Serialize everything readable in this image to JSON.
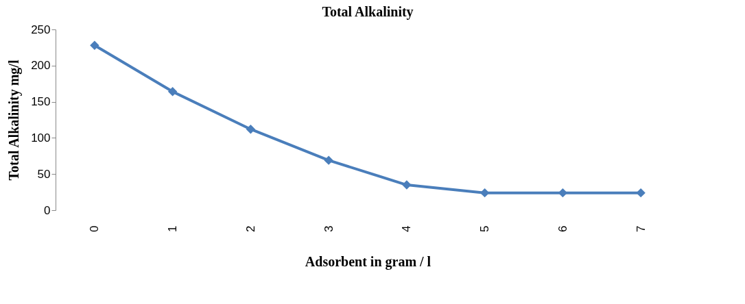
{
  "chart_data": {
    "type": "line",
    "title": "Total Alkalinity",
    "xlabel": "Adsorbent in gram / l",
    "ylabel": "Total  Alkalinity mg/l",
    "categories": [
      "0",
      "1",
      "2",
      "3",
      "4",
      "5",
      "6",
      "7"
    ],
    "series": [
      {
        "color": "#4a7ebb",
        "values": [
          228,
          164,
          112,
          69,
          35,
          24,
          24,
          24
        ]
      }
    ],
    "ylim": [
      0,
      250
    ],
    "yticks": [
      0,
      50,
      100,
      150,
      200,
      250
    ],
    "grid": false,
    "legend": false,
    "marker": "diamond",
    "line_style": "solid"
  }
}
